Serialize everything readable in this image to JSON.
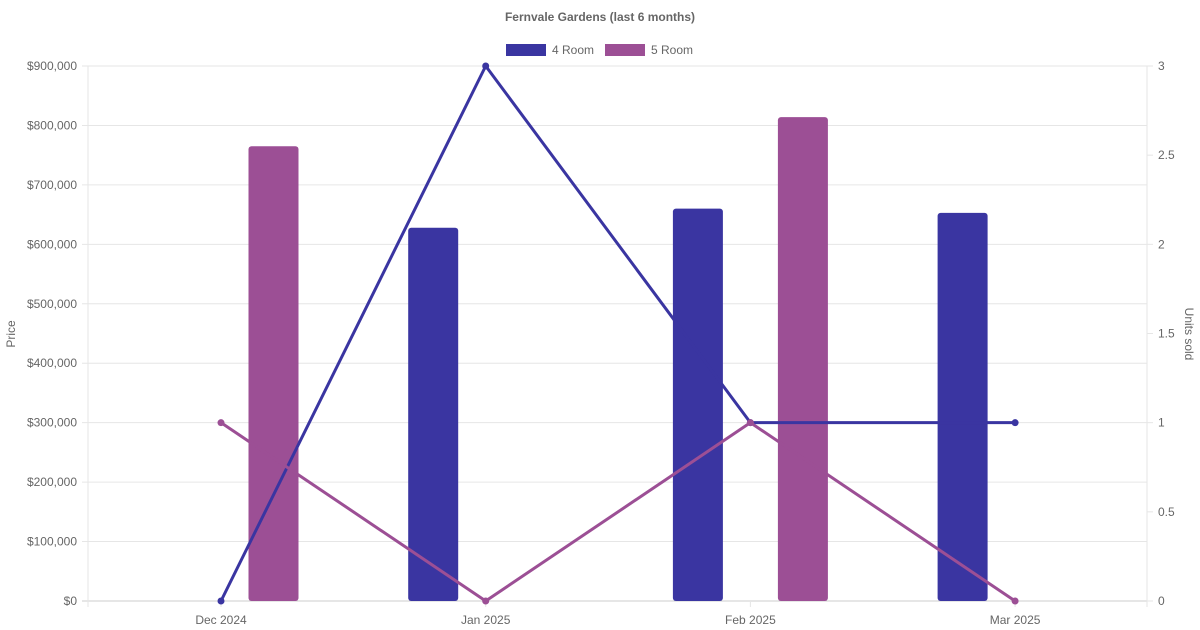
{
  "chart_data": {
    "type": "bar",
    "title": "Fernvale Gardens (last 6 months)",
    "categories": [
      "Dec 2024",
      "Jan 2025",
      "Feb 2025",
      "Mar 2025"
    ],
    "y_left": {
      "label": "Price",
      "range": [
        0,
        900000
      ],
      "ticks": [
        "$0",
        "$100,000",
        "$200,000",
        "$300,000",
        "$400,000",
        "$500,000",
        "$600,000",
        "$700,000",
        "$800,000",
        "$900,000"
      ]
    },
    "y_right": {
      "label": "Units sold",
      "range": [
        0,
        3
      ],
      "ticks": [
        "0",
        "0.5",
        "1",
        "1.5",
        "2",
        "2.5",
        "3"
      ]
    },
    "legend_position": "top-center",
    "grid": true,
    "series": [
      {
        "name": "4 Room",
        "color": "#3a35a1",
        "price": [
          null,
          628000,
          660000,
          653000
        ],
        "units_sold": [
          0,
          3,
          1,
          1
        ]
      },
      {
        "name": "5 Room",
        "color": "#9c4f95",
        "price": [
          765000,
          null,
          814000,
          null
        ],
        "units_sold": [
          1,
          0,
          1,
          0
        ]
      }
    ]
  }
}
